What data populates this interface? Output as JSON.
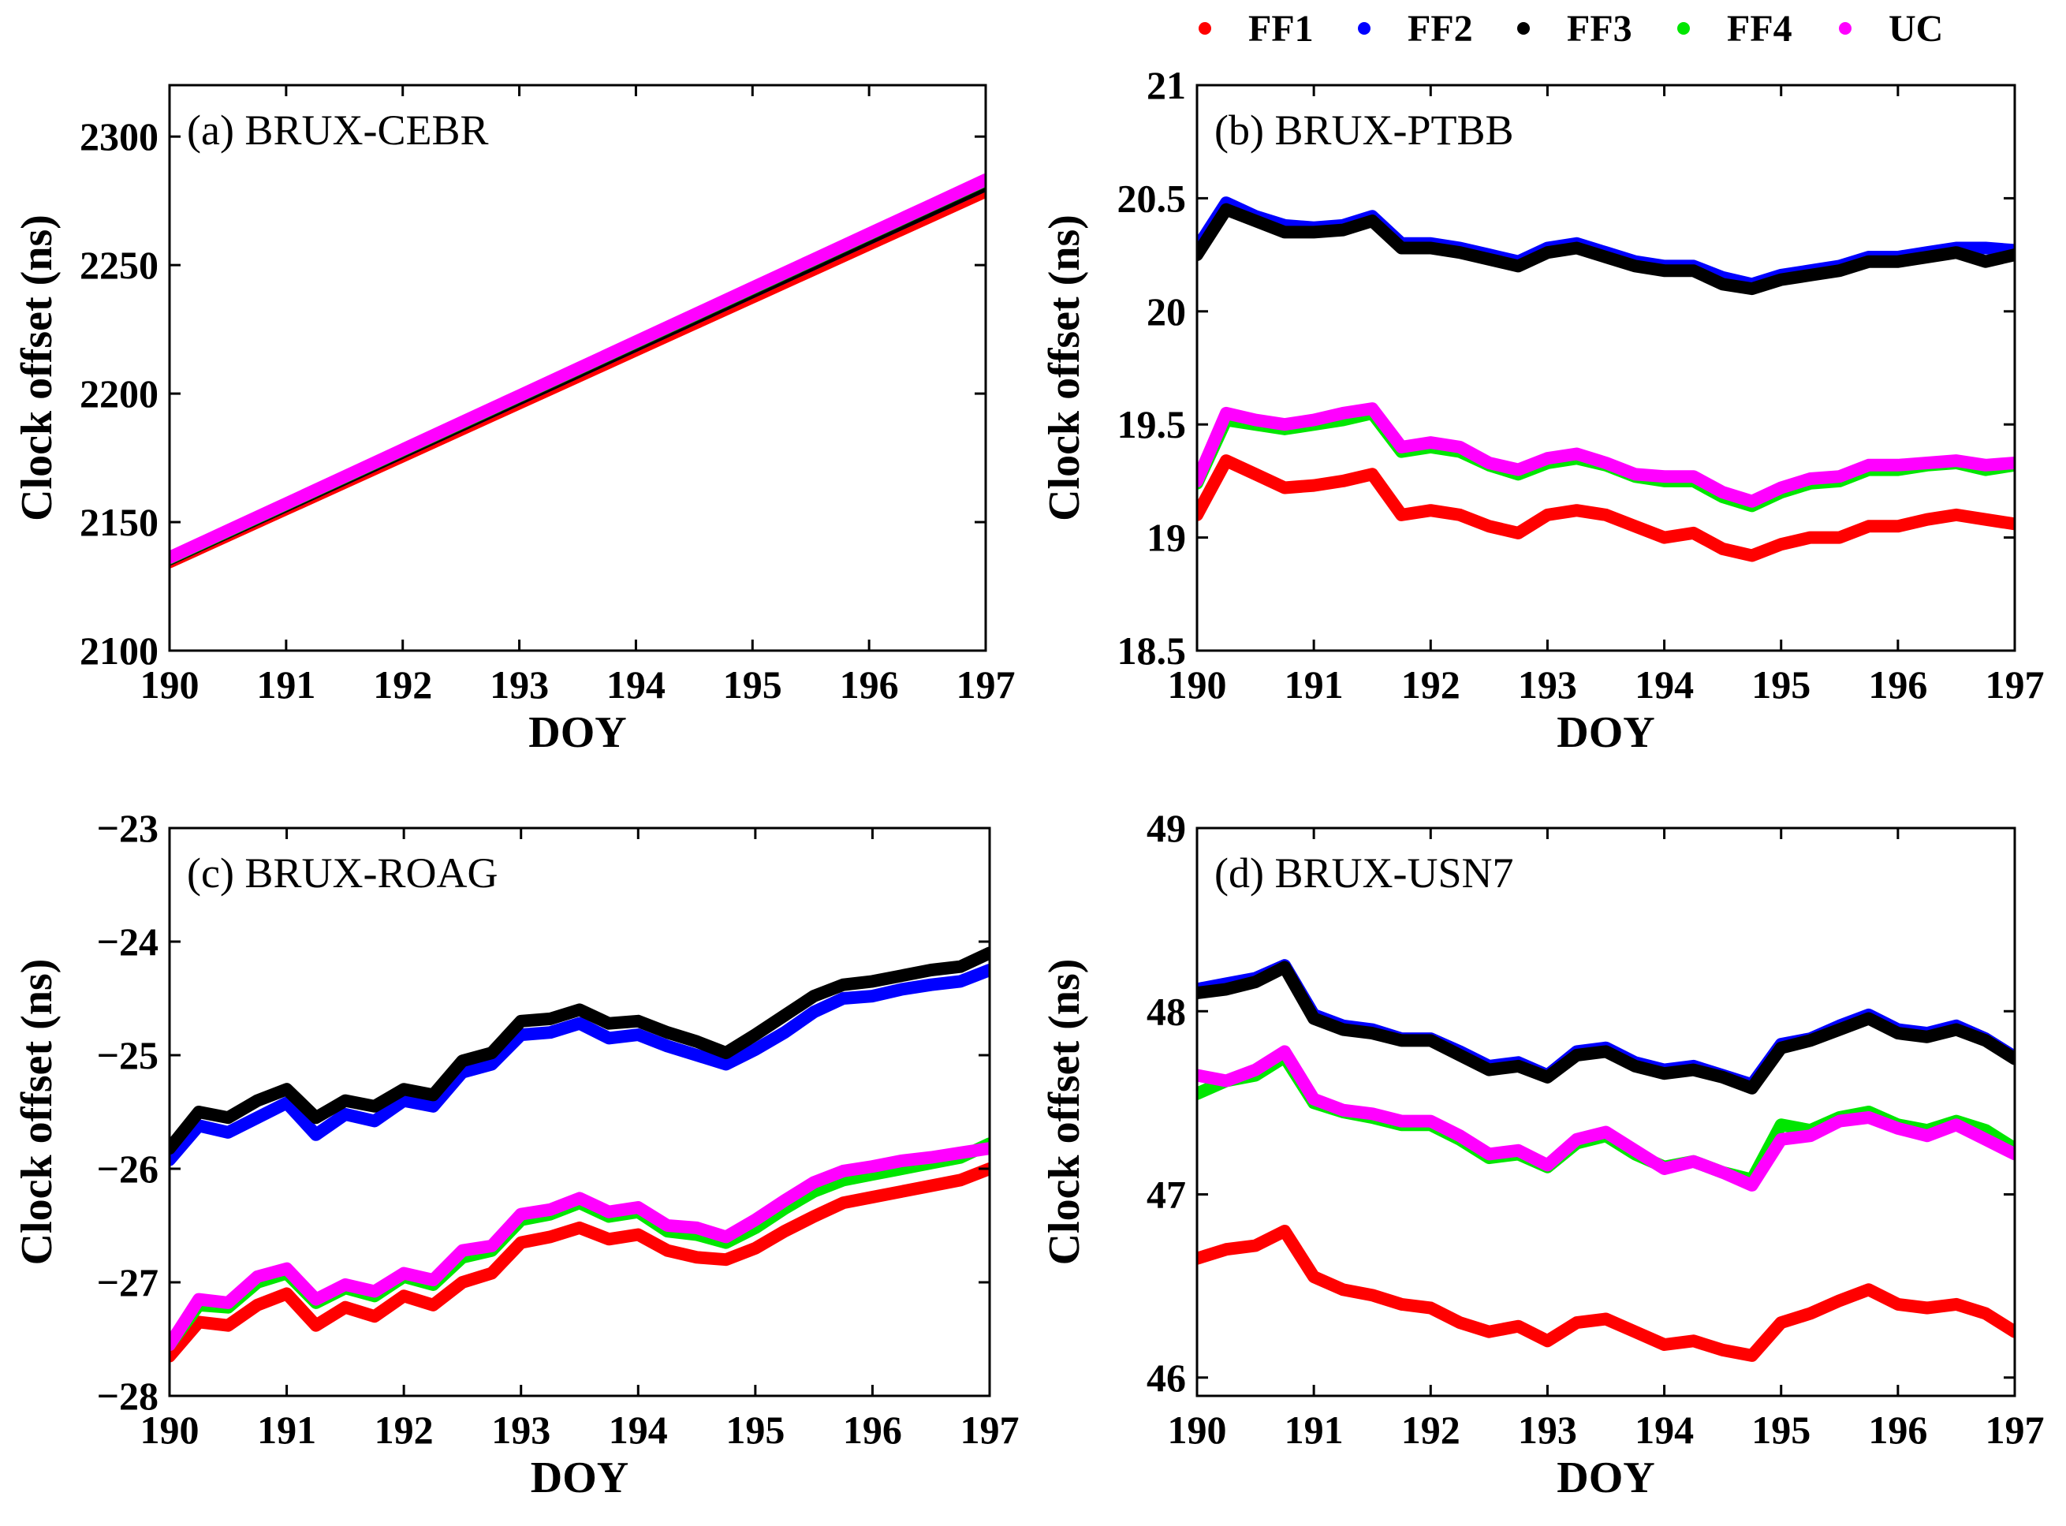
{
  "colors": {
    "FF1": "#ff0000",
    "FF2": "#0000ff",
    "FF3": "#000000",
    "FF4": "#00e600",
    "UC": "#ff00ff"
  },
  "legend": {
    "entries": [
      "FF1",
      "FF2",
      "FF3",
      "FF4",
      "UC"
    ]
  },
  "chart_data": [
    {
      "type": "line",
      "title": "(a) BRUX-CEBR",
      "xlabel": "DOY",
      "ylabel": "Clock offset (ns)",
      "xlim": [
        190,
        197
      ],
      "ylim": [
        2100,
        2320
      ],
      "xticks": [
        190,
        191,
        192,
        193,
        194,
        195,
        196,
        197
      ],
      "yticks": [
        2100,
        2150,
        2200,
        2250,
        2300
      ],
      "x": [
        190,
        190.5,
        191,
        191.5,
        192,
        192.5,
        193,
        193.5,
        194,
        194.5,
        195,
        195.5,
        196,
        196.5,
        197
      ],
      "series": [
        {
          "name": "FF1",
          "values": [
            2134.5,
            2144.8,
            2155.1,
            2165.4,
            2175.7,
            2186.0,
            2196.3,
            2206.6,
            2216.9,
            2227.2,
            2237.5,
            2247.8,
            2258.1,
            2268.4,
            2278.7
          ]
        },
        {
          "name": "FF2",
          "values": [
            2135.6,
            2146.0,
            2156.4,
            2166.8,
            2177.2,
            2187.6,
            2198.0,
            2208.4,
            2218.8,
            2229.2,
            2239.6,
            2250.0,
            2260.4,
            2270.8,
            2281.2
          ]
        },
        {
          "name": "FF3",
          "values": [
            2135.6,
            2146.0,
            2156.4,
            2166.8,
            2177.2,
            2187.6,
            2198.0,
            2208.4,
            2218.8,
            2229.2,
            2239.6,
            2250.0,
            2260.4,
            2270.8,
            2281.2
          ]
        },
        {
          "name": "FF4",
          "values": [
            2136.0,
            2146.5,
            2157.0,
            2167.5,
            2178.0,
            2188.5,
            2199.0,
            2209.5,
            2220.0,
            2230.5,
            2241.0,
            2251.5,
            2262.0,
            2272.5,
            2283.0
          ]
        },
        {
          "name": "UC",
          "values": [
            2136.2,
            2146.7,
            2157.2,
            2167.7,
            2178.2,
            2188.7,
            2199.2,
            2209.7,
            2220.2,
            2230.7,
            2241.2,
            2251.7,
            2262.2,
            2272.7,
            2283.2
          ]
        }
      ]
    },
    {
      "type": "line",
      "title": "(b) BRUX-PTBB",
      "xlabel": "DOY",
      "ylabel": "Clock offset (ns)",
      "xlim": [
        190,
        197
      ],
      "ylim": [
        18.5,
        21
      ],
      "xticks": [
        190,
        191,
        192,
        193,
        194,
        195,
        196,
        197
      ],
      "yticks": [
        18.5,
        19,
        19.5,
        20,
        20.5,
        21
      ],
      "x": [
        190,
        190.25,
        190.5,
        190.75,
        191,
        191.25,
        191.5,
        191.75,
        192,
        192.25,
        192.5,
        192.75,
        193,
        193.25,
        193.5,
        193.75,
        194,
        194.25,
        194.5,
        194.75,
        195,
        195.25,
        195.5,
        195.75,
        196,
        196.25,
        196.5,
        196.75,
        197
      ],
      "series": [
        {
          "name": "FF1",
          "values": [
            19.1,
            19.34,
            19.28,
            19.22,
            19.23,
            19.25,
            19.28,
            19.1,
            19.12,
            19.1,
            19.05,
            19.02,
            19.1,
            19.12,
            19.1,
            19.05,
            19.0,
            19.02,
            18.95,
            18.92,
            18.97,
            19.0,
            19.0,
            19.05,
            19.05,
            19.08,
            19.1,
            19.08,
            19.06
          ]
        },
        {
          "name": "FF2",
          "values": [
            20.28,
            20.48,
            20.42,
            20.38,
            20.37,
            20.38,
            20.42,
            20.3,
            20.3,
            20.28,
            20.25,
            20.22,
            20.28,
            20.3,
            20.26,
            20.22,
            20.2,
            20.2,
            20.15,
            20.12,
            20.16,
            20.18,
            20.2,
            20.24,
            20.24,
            20.26,
            20.28,
            20.28,
            20.27
          ]
        },
        {
          "name": "FF3",
          "values": [
            20.25,
            20.45,
            20.4,
            20.35,
            20.35,
            20.36,
            20.4,
            20.28,
            20.28,
            20.26,
            20.23,
            20.2,
            20.26,
            20.28,
            20.24,
            20.2,
            20.18,
            20.18,
            20.12,
            20.1,
            20.14,
            20.16,
            20.18,
            20.22,
            20.22,
            20.24,
            20.26,
            20.22,
            20.25
          ]
        },
        {
          "name": "FF4",
          "values": [
            19.24,
            19.52,
            19.5,
            19.48,
            19.5,
            19.52,
            19.55,
            19.38,
            19.4,
            19.38,
            19.32,
            19.28,
            19.33,
            19.35,
            19.32,
            19.27,
            19.25,
            19.25,
            19.18,
            19.14,
            19.2,
            19.24,
            19.25,
            19.3,
            19.3,
            19.32,
            19.33,
            19.3,
            19.32
          ]
        },
        {
          "name": "UC",
          "values": [
            19.25,
            19.55,
            19.52,
            19.5,
            19.52,
            19.55,
            19.57,
            19.4,
            19.42,
            19.4,
            19.33,
            19.3,
            19.35,
            19.37,
            19.33,
            19.28,
            19.27,
            19.27,
            19.2,
            19.16,
            19.22,
            19.26,
            19.27,
            19.32,
            19.32,
            19.33,
            19.34,
            19.32,
            19.33
          ]
        }
      ]
    },
    {
      "type": "line",
      "title": "(c) BRUX-ROAG",
      "xlabel": "DOY",
      "ylabel": "Clock offset (ns)",
      "xlim": [
        190,
        197
      ],
      "ylim": [
        -28,
        -23
      ],
      "xticks": [
        190,
        191,
        192,
        193,
        194,
        195,
        196,
        197
      ],
      "yticks": [
        -28,
        -27,
        -26,
        -25,
        -24,
        -23
      ],
      "x": [
        190,
        190.25,
        190.5,
        190.75,
        191,
        191.25,
        191.5,
        191.75,
        192,
        192.25,
        192.5,
        192.75,
        193,
        193.25,
        193.5,
        193.75,
        194,
        194.25,
        194.5,
        194.75,
        195,
        195.25,
        195.5,
        195.75,
        196,
        196.25,
        196.5,
        196.75,
        197
      ],
      "series": [
        {
          "name": "FF1",
          "values": [
            -27.65,
            -27.35,
            -27.38,
            -27.2,
            -27.1,
            -27.38,
            -27.22,
            -27.3,
            -27.12,
            -27.2,
            -27.0,
            -26.92,
            -26.65,
            -26.6,
            -26.52,
            -26.62,
            -26.58,
            -26.72,
            -26.78,
            -26.8,
            -26.7,
            -26.55,
            -26.42,
            -26.3,
            -26.25,
            -26.2,
            -26.15,
            -26.1,
            -26.0
          ]
        },
        {
          "name": "FF2",
          "values": [
            -25.92,
            -25.62,
            -25.68,
            -25.55,
            -25.42,
            -25.7,
            -25.52,
            -25.58,
            -25.4,
            -25.45,
            -25.15,
            -25.08,
            -24.82,
            -24.8,
            -24.72,
            -24.85,
            -24.82,
            -24.92,
            -25.0,
            -25.08,
            -24.95,
            -24.8,
            -24.62,
            -24.5,
            -24.48,
            -24.42,
            -24.38,
            -24.35,
            -24.25
          ]
        },
        {
          "name": "FF3",
          "values": [
            -25.82,
            -25.5,
            -25.55,
            -25.4,
            -25.3,
            -25.55,
            -25.4,
            -25.45,
            -25.3,
            -25.35,
            -25.05,
            -24.98,
            -24.7,
            -24.68,
            -24.6,
            -24.72,
            -24.7,
            -24.8,
            -24.88,
            -24.98,
            -24.82,
            -24.65,
            -24.48,
            -24.38,
            -24.35,
            -24.3,
            -24.25,
            -24.22,
            -24.1
          ]
        },
        {
          "name": "FF4",
          "values": [
            -27.55,
            -27.2,
            -27.22,
            -27.0,
            -26.92,
            -27.18,
            -27.05,
            -27.12,
            -26.95,
            -27.02,
            -26.78,
            -26.72,
            -26.45,
            -26.4,
            -26.3,
            -26.42,
            -26.38,
            -26.55,
            -26.58,
            -26.65,
            -26.52,
            -26.35,
            -26.2,
            -26.1,
            -26.05,
            -26.0,
            -25.95,
            -25.9,
            -25.78
          ]
        },
        {
          "name": "UC",
          "values": [
            -27.55,
            -27.15,
            -27.18,
            -26.95,
            -26.88,
            -27.15,
            -27.02,
            -27.08,
            -26.92,
            -26.98,
            -26.72,
            -26.68,
            -26.4,
            -26.36,
            -26.26,
            -26.38,
            -26.34,
            -26.5,
            -26.52,
            -26.6,
            -26.45,
            -26.28,
            -26.12,
            -26.02,
            -25.98,
            -25.93,
            -25.9,
            -25.86,
            -25.82
          ]
        }
      ]
    },
    {
      "type": "line",
      "title": "(d) BRUX-USN7",
      "xlabel": "DOY",
      "ylabel": "Clock offset (ns)",
      "xlim": [
        190,
        197
      ],
      "ylim": [
        45.9,
        49
      ],
      "xticks": [
        190,
        191,
        192,
        193,
        194,
        195,
        196,
        197
      ],
      "yticks": [
        46,
        47,
        48,
        49
      ],
      "x": [
        190,
        190.25,
        190.5,
        190.75,
        191,
        191.25,
        191.5,
        191.75,
        192,
        192.25,
        192.5,
        192.75,
        193,
        193.25,
        193.5,
        193.75,
        194,
        194.25,
        194.5,
        194.75,
        195,
        195.25,
        195.5,
        195.75,
        196,
        196.25,
        196.5,
        196.75,
        197
      ],
      "series": [
        {
          "name": "FF1",
          "values": [
            46.65,
            46.7,
            46.72,
            46.8,
            46.55,
            46.48,
            46.45,
            46.4,
            46.38,
            46.3,
            46.25,
            46.28,
            46.2,
            46.3,
            46.32,
            46.25,
            46.18,
            46.2,
            46.15,
            46.12,
            46.3,
            46.35,
            46.42,
            46.48,
            46.4,
            46.38,
            46.4,
            46.35,
            46.25
          ]
        },
        {
          "name": "FF2",
          "values": [
            48.12,
            48.15,
            48.18,
            48.25,
            47.98,
            47.92,
            47.9,
            47.85,
            47.85,
            47.78,
            47.7,
            47.72,
            47.65,
            47.78,
            47.8,
            47.72,
            47.68,
            47.7,
            47.65,
            47.6,
            47.82,
            47.85,
            47.92,
            47.98,
            47.9,
            47.88,
            47.92,
            47.85,
            47.75
          ]
        },
        {
          "name": "FF3",
          "values": [
            48.1,
            48.12,
            48.16,
            48.24,
            47.96,
            47.9,
            47.88,
            47.84,
            47.84,
            47.76,
            47.68,
            47.7,
            47.64,
            47.76,
            47.78,
            47.7,
            47.66,
            47.68,
            47.64,
            47.58,
            47.8,
            47.84,
            47.9,
            47.96,
            47.88,
            47.86,
            47.9,
            47.84,
            47.74
          ]
        },
        {
          "name": "FF4",
          "values": [
            47.55,
            47.62,
            47.65,
            47.75,
            47.5,
            47.45,
            47.42,
            47.38,
            47.38,
            47.3,
            47.2,
            47.22,
            47.15,
            47.28,
            47.32,
            47.22,
            47.15,
            47.18,
            47.12,
            47.08,
            47.38,
            47.35,
            47.42,
            47.45,
            47.38,
            47.35,
            47.4,
            47.35,
            47.25
          ]
        },
        {
          "name": "UC",
          "values": [
            47.65,
            47.62,
            47.68,
            47.78,
            47.52,
            47.46,
            47.44,
            47.4,
            47.4,
            47.32,
            47.22,
            47.24,
            47.16,
            47.3,
            47.34,
            47.24,
            47.14,
            47.18,
            47.12,
            47.05,
            47.3,
            47.32,
            47.4,
            47.42,
            47.36,
            47.32,
            47.38,
            47.3,
            47.22
          ]
        }
      ]
    }
  ]
}
